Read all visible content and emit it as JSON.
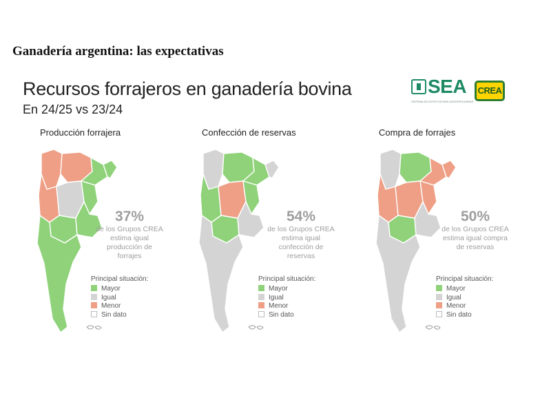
{
  "document_heading": "Ganadería argentina: las expectativas",
  "infographic": {
    "title": "Recursos forrajeros en ganadería bovina",
    "subtitle": "En 24/25 vs 23/24"
  },
  "logos": {
    "sea": "SEA",
    "sea_tagline": "SISTEMA DE EXPECTATIVAS AGROPECUARIAS",
    "crea": "CREA"
  },
  "colors": {
    "mayor": "#8fd27a",
    "igual": "#d4d4d4",
    "menor": "#ee9f85",
    "sin_dato": "#ffffff"
  },
  "legend": {
    "title": "Principal situación:",
    "items": [
      "Mayor",
      "Igual",
      "Menor",
      "Sin dato"
    ]
  },
  "panels": [
    {
      "title": "Producción forrajera",
      "percent": "37%",
      "lines": [
        "de los Grupos CREA",
        "estima igual",
        "producción de",
        "forrajes"
      ],
      "regions": {
        "northwest": "menor",
        "chaco": "menor",
        "northeast": "mayor",
        "misiones": "mayor",
        "cuyo": "menor",
        "center": "igual",
        "entre_rios": "mayor",
        "buenos_aires_west": "mayor",
        "buenos_aires_east": "mayor",
        "patagonia": "mayor"
      }
    },
    {
      "title": "Confección de reservas",
      "percent": "54%",
      "lines": [
        "de los Grupos CREA",
        "estima igual",
        "confección de",
        "reservas"
      ],
      "regions": {
        "northwest": "igual",
        "chaco": "mayor",
        "northeast": "mayor",
        "misiones": "igual",
        "cuyo": "mayor",
        "center": "menor",
        "entre_rios": "mayor",
        "buenos_aires_west": "mayor",
        "buenos_aires_east": "igual",
        "patagonia": "igual"
      }
    },
    {
      "title": "Compra de forrajes",
      "percent": "50%",
      "lines": [
        "de los Grupos CREA",
        "estima igual compra",
        "de reservas"
      ],
      "regions": {
        "northwest": "igual",
        "chaco": "mayor",
        "northeast": "menor",
        "misiones": "menor",
        "cuyo": "menor",
        "center": "menor",
        "entre_rios": "menor",
        "buenos_aires_west": "mayor",
        "buenos_aires_east": "igual",
        "patagonia": "igual"
      }
    }
  ]
}
